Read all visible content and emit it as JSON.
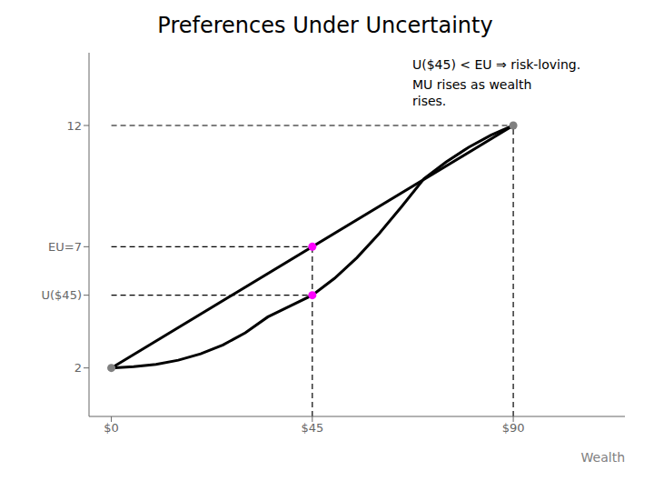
{
  "chart_data": {
    "type": "line",
    "title": "Preferences Under Uncertainty",
    "xlabel": "Wealth",
    "xlim": [
      -5,
      115
    ],
    "ylim": [
      0,
      15
    ],
    "xticks": [
      {
        "value": 0,
        "label": "$0"
      },
      {
        "value": 45,
        "label": "$45"
      },
      {
        "value": 90,
        "label": "$90"
      }
    ],
    "yticks": [
      2,
      {
        "value": 5.0,
        "label": "U($45)"
      },
      {
        "value": 7,
        "label": "EU=7"
      },
      12
    ],
    "grid": false,
    "series": [
      {
        "type": "line",
        "color": "black",
        "x": [
          0,
          5,
          10,
          15,
          20,
          25,
          30,
          35,
          40,
          45,
          50,
          55,
          60,
          65,
          70,
          75,
          80,
          85,
          90
        ],
        "values": [
          2,
          2.05,
          2.15,
          2.32,
          2.58,
          2.95,
          3.45,
          4.1,
          4.55,
          5.0,
          5.7,
          6.55,
          7.55,
          8.65,
          9.8,
          10.5,
          11.1,
          11.6,
          12.0
        ]
      },
      {
        "type": "line",
        "color": "black",
        "x": [
          0,
          90
        ],
        "values": [
          2,
          12
        ]
      },
      {
        "type": "scatter",
        "marker": "circle",
        "color": "#808080",
        "x": [
          0,
          90
        ],
        "values": [
          2,
          12
        ]
      },
      {
        "type": "scatter",
        "marker": "circle",
        "color": "#FF00FF",
        "x": [
          45,
          45
        ],
        "values": [
          5.0,
          7.0
        ]
      },
      {
        "type": "line",
        "line_style": "dashed",
        "color": "black",
        "x": [
          45,
          45
        ],
        "values": [
          0,
          7.0
        ]
      },
      {
        "type": "line",
        "line_style": "dashed",
        "color": "black",
        "x": [
          90,
          90
        ],
        "values": [
          0,
          12
        ]
      },
      {
        "type": "line",
        "line_style": "dashed",
        "color": "black",
        "x": [
          0,
          90
        ],
        "values": [
          12,
          12
        ]
      },
      {
        "type": "line",
        "line_style": "dashed",
        "color": "black",
        "x": [
          0,
          45
        ],
        "values": [
          7.0,
          7.0
        ]
      },
      {
        "type": "line",
        "line_style": "dashed",
        "color": "black",
        "x": [
          0,
          45
        ],
        "values": [
          5.0,
          5.0
        ]
      }
    ],
    "annotations": [
      "U($45) < EU ⇒ risk-loving.",
      "MU rises as wealth\nrises."
    ]
  }
}
